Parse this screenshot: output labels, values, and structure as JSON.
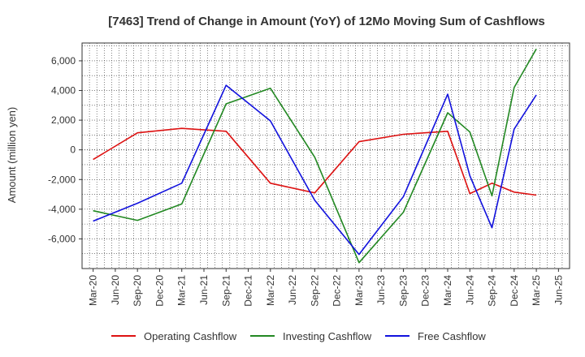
{
  "chart_data": {
    "type": "line",
    "title": "[7463]  Trend of Change in Amount (YoY) of 12Mo Moving Sum of Cashflows",
    "xlabel": "",
    "ylabel": "Amount (million yen)",
    "ylim": [
      -8000,
      7200
    ],
    "yticks": [
      -6000,
      -4000,
      -2000,
      0,
      2000,
      4000,
      6000
    ],
    "ytick_labels": [
      "-6,000",
      "-4,000",
      "-2,000",
      "0",
      "2,000",
      "4,000",
      "6,000"
    ],
    "categories": [
      "Mar-20",
      "Jun-20",
      "Sep-20",
      "Dec-20",
      "Mar-21",
      "Jun-21",
      "Sep-21",
      "Dec-21",
      "Mar-22",
      "Jun-22",
      "Sep-22",
      "Dec-22",
      "Mar-23",
      "Jun-23",
      "Sep-23",
      "Dec-23",
      "Mar-24",
      "Jun-24",
      "Sep-24",
      "Dec-24",
      "Mar-25",
      "Jun-25"
    ],
    "grid": true,
    "legend_position": "bottom",
    "series": [
      {
        "name": "Operating Cashflow",
        "color": "#dd1111",
        "points": [
          [
            0,
            -650
          ],
          [
            2,
            1150
          ],
          [
            4,
            1450
          ],
          [
            6,
            1250
          ],
          [
            8,
            -2250
          ],
          [
            10,
            -2900
          ],
          [
            12,
            550
          ],
          [
            14,
            1050
          ],
          [
            16,
            1250
          ],
          [
            17,
            -2950
          ],
          [
            18,
            -2250
          ],
          [
            19,
            -2850
          ],
          [
            20,
            -3050
          ]
        ]
      },
      {
        "name": "Investing Cashflow",
        "color": "#228822",
        "points": [
          [
            0,
            -4100
          ],
          [
            2,
            -4750
          ],
          [
            4,
            -3650
          ],
          [
            6,
            3100
          ],
          [
            8,
            4150
          ],
          [
            10,
            -500
          ],
          [
            12,
            -7600
          ],
          [
            14,
            -4200
          ],
          [
            16,
            2500
          ],
          [
            17,
            1200
          ],
          [
            18,
            -3100
          ],
          [
            19,
            4200
          ],
          [
            20,
            6800
          ]
        ]
      },
      {
        "name": "Free Cashflow",
        "color": "#1111dd",
        "points": [
          [
            0,
            -4800
          ],
          [
            2,
            -3600
          ],
          [
            4,
            -2250
          ],
          [
            6,
            4350
          ],
          [
            8,
            1950
          ],
          [
            10,
            -3400
          ],
          [
            12,
            -7050
          ],
          [
            14,
            -3150
          ],
          [
            16,
            3750
          ],
          [
            17,
            -1750
          ],
          [
            18,
            -5250
          ],
          [
            19,
            1400
          ],
          [
            20,
            3700
          ]
        ]
      }
    ]
  }
}
